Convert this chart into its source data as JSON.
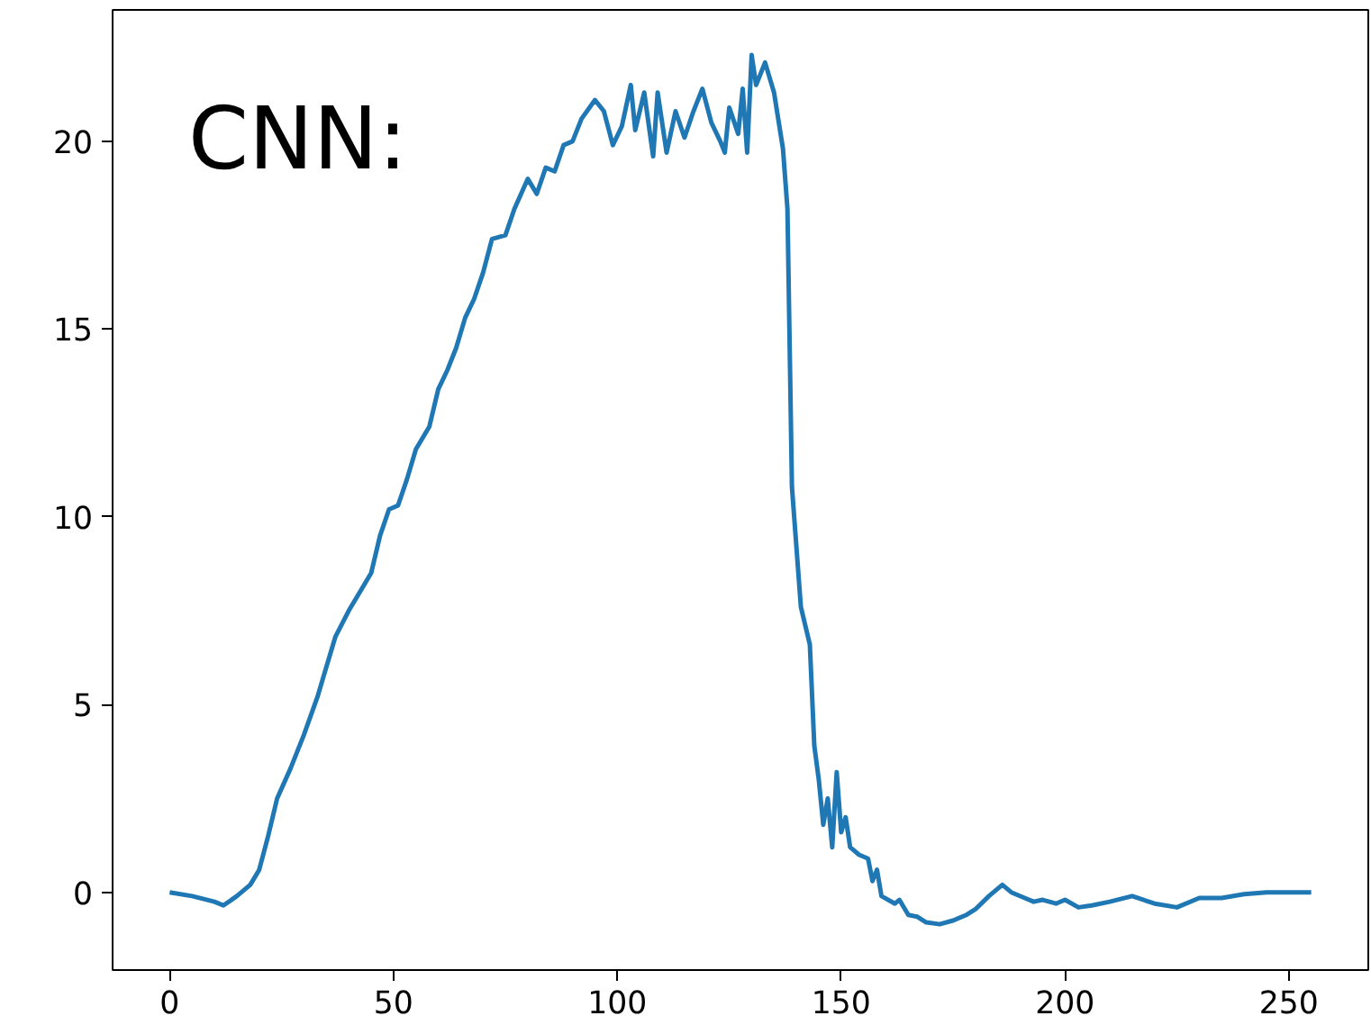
{
  "chart_data": {
    "type": "line",
    "annotations": [
      "CNN:"
    ],
    "x": [
      0,
      5,
      10,
      12,
      15,
      18,
      20,
      22,
      24,
      27,
      30,
      33,
      35,
      37,
      40,
      43,
      45,
      47,
      49,
      51,
      53,
      55,
      58,
      60,
      62,
      64,
      66,
      68,
      70,
      72,
      75,
      77,
      80,
      82,
      84,
      86,
      88,
      90,
      92,
      95,
      97,
      99,
      101,
      103,
      104,
      106,
      108,
      109,
      111,
      113,
      115,
      117,
      119,
      121,
      123,
      124,
      125,
      127,
      128,
      129,
      130,
      131,
      133,
      135,
      137,
      138,
      139,
      141,
      143,
      144,
      145,
      146,
      147,
      148,
      149,
      150,
      151,
      152,
      154,
      156,
      157,
      158,
      159,
      162,
      163,
      165,
      167,
      169,
      172,
      175,
      178,
      180,
      183,
      186,
      188,
      191,
      193,
      195,
      198,
      200,
      203,
      206,
      210,
      215,
      220,
      225,
      230,
      235,
      240,
      245,
      250,
      255
    ],
    "series": [
      {
        "color": "#1f77b4",
        "values": [
          0,
          -0.1,
          -0.25,
          -0.35,
          -0.1,
          0.2,
          0.6,
          1.5,
          2.5,
          3.3,
          4.2,
          5.2,
          6,
          6.8,
          7.5,
          8.1,
          8.5,
          9.5,
          10.2,
          10.3,
          11,
          11.8,
          12.4,
          13.4,
          13.9,
          14.5,
          15.3,
          15.8,
          16.5,
          17.4,
          17.5,
          18.2,
          19,
          18.6,
          19.3,
          19.2,
          19.9,
          20,
          20.6,
          21.1,
          20.8,
          19.9,
          20.4,
          21.5,
          20.3,
          21.3,
          19.6,
          21.3,
          19.7,
          20.8,
          20.1,
          20.8,
          21.4,
          20.5,
          20.0,
          19.7,
          20.9,
          20.2,
          21.4,
          19.7,
          22.3,
          21.5,
          22.1,
          21.3,
          19.8,
          18.2,
          10.8,
          7.6,
          6.6,
          3.9,
          3.0,
          1.8,
          2.5,
          1.2,
          3.2,
          1.6,
          2.0,
          1.2,
          1.0,
          0.9,
          0.3,
          0.6,
          -0.1,
          -0.3,
          -0.2,
          -0.6,
          -0.65,
          -0.8,
          -0.85,
          -0.75,
          -0.6,
          -0.45,
          -0.1,
          0.2,
          0,
          -0.15,
          -0.25,
          -0.2,
          -0.3,
          -0.2,
          -0.4,
          -0.35,
          -0.25,
          -0.1,
          -0.3,
          -0.4,
          -0.15,
          -0.15,
          -0.05,
          0,
          0,
          0
        ]
      }
    ],
    "xlim": [
      -12.75,
      267.75
    ],
    "ylim": [
      -2.07,
      23.5
    ],
    "xticks": [
      0,
      50,
      100,
      150,
      200,
      250
    ],
    "yticks": [
      0,
      5,
      10,
      15,
      20
    ],
    "grid": false,
    "marker": "none",
    "line_style": "solid"
  }
}
